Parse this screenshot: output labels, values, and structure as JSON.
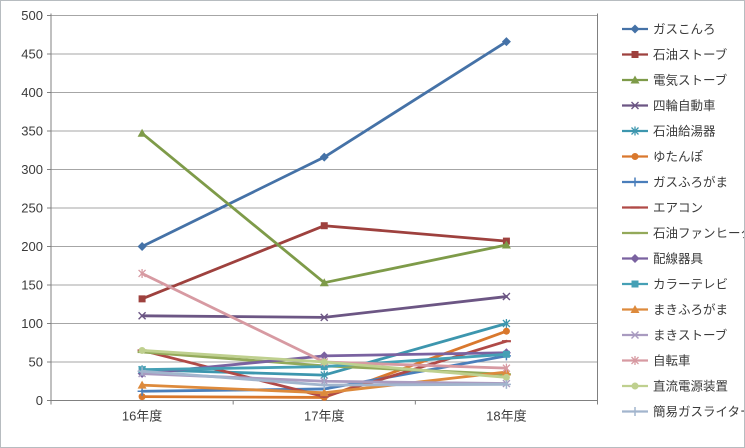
{
  "window": {
    "title": "line-chart"
  },
  "chart_data": {
    "type": "line",
    "title": "",
    "xlabel": "",
    "ylabel": "",
    "categories": [
      "16年度",
      "17年度",
      "18年度"
    ],
    "yticks": [
      0,
      50,
      100,
      150,
      200,
      250,
      300,
      350,
      400,
      450,
      500
    ],
    "ylim": [
      0,
      500
    ],
    "ytick_step": 50,
    "grid": true,
    "legend_position": "right",
    "series": [
      {
        "name": "ガスこんろ",
        "marker": "diamond",
        "color": "#4572A7",
        "values": [
          200,
          316,
          466
        ]
      },
      {
        "name": "石油ストーブ",
        "marker": "square",
        "color": "#9E413E",
        "values": [
          132,
          227,
          207
        ]
      },
      {
        "name": "電気ストーブ",
        "marker": "triangle",
        "color": "#7E9B49",
        "values": [
          347,
          153,
          202
        ]
      },
      {
        "name": "四輪自動車",
        "marker": "x",
        "color": "#6C5684",
        "values": [
          110,
          108,
          135
        ]
      },
      {
        "name": "石油給湯器",
        "marker": "asterisk",
        "color": "#3D96AE",
        "values": [
          40,
          33,
          100
        ]
      },
      {
        "name": "ゆたんぽ",
        "marker": "circle",
        "color": "#D9782D",
        "values": [
          5,
          4,
          90
        ]
      },
      {
        "name": "ガスふろがま",
        "marker": "plus",
        "color": "#4A7EBB",
        "values": [
          12,
          15,
          58
        ]
      },
      {
        "name": "エアコン",
        "marker": "dash",
        "color": "#B04A47",
        "values": [
          65,
          5,
          77
        ]
      },
      {
        "name": "石油ファンヒーター",
        "marker": "dash",
        "color": "#93A95A",
        "values": [
          63,
          45,
          34
        ]
      },
      {
        "name": "配線器具",
        "marker": "diamond",
        "color": "#7A62A0",
        "values": [
          35,
          58,
          62
        ]
      },
      {
        "name": "カラーテレビ",
        "marker": "square",
        "color": "#45A0B5",
        "values": [
          40,
          44,
          60
        ]
      },
      {
        "name": "まきふろがま",
        "marker": "triangle",
        "color": "#DD8A3C",
        "values": [
          20,
          10,
          37
        ]
      },
      {
        "name": "まきストーブ",
        "marker": "x",
        "color": "#A99BC0",
        "values": [
          35,
          25,
          22
        ]
      },
      {
        "name": "自転車",
        "marker": "asterisk",
        "color": "#D79AA2",
        "values": [
          165,
          50,
          42
        ]
      },
      {
        "name": "直流電源装置",
        "marker": "circle",
        "color": "#BFD08F",
        "values": [
          65,
          50,
          30
        ]
      },
      {
        "name": "簡易ガスライター",
        "marker": "plus",
        "color": "#A2B5CD",
        "values": [
          38,
          20,
          21
        ]
      }
    ],
    "colors": {
      "background": "#FFFFFF",
      "grid": "#A6A6A6",
      "axis": "#808080",
      "tick_text": "#3B3B3B",
      "border": "#B7BCC0"
    }
  }
}
